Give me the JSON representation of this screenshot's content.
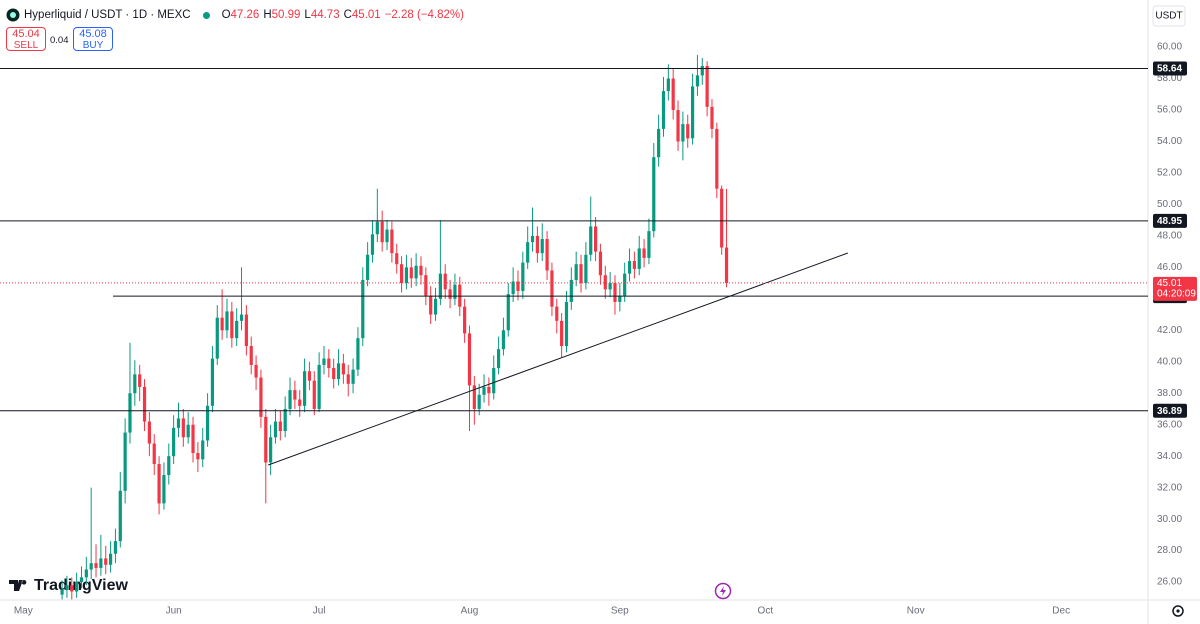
{
  "chart_data": {
    "type": "candlestick",
    "symbol": "Hyperliquid / USDT · 1D · MEXC",
    "ohlc_header": [
      {
        "key": "O",
        "value": "47.26"
      },
      {
        "key": "H",
        "value": "50.99"
      },
      {
        "key": "L",
        "value": "44.73"
      },
      {
        "key": "C",
        "value": "45.01"
      }
    ],
    "change": "−2.28 (−4.82%)",
    "sell": {
      "price": "45.04",
      "label": "SELL"
    },
    "buy": {
      "price": "45.08",
      "label": "BUY"
    },
    "spread": "0.04",
    "currency": "USDT",
    "brand": "TradingView",
    "up_color": "#089981",
    "down_color": "#f23645",
    "grid": false,
    "xlim": [
      -12.8,
      223.9
    ],
    "ylim": [
      24.86,
      62.99
    ],
    "xticks": [
      {
        "value": -8,
        "label": "May"
      },
      {
        "value": 23,
        "label": "Jun"
      },
      {
        "value": 53,
        "label": "Jul"
      },
      {
        "value": 84,
        "label": "Aug"
      },
      {
        "value": 115,
        "label": "Sep"
      },
      {
        "value": 145,
        "label": "Oct"
      },
      {
        "value": 176,
        "label": "Nov"
      },
      {
        "value": 206,
        "label": "Dec"
      }
    ],
    "yticks": [
      {
        "value": 26,
        "label": "26.00"
      },
      {
        "value": 28,
        "label": "28.00"
      },
      {
        "value": 30,
        "label": "30.00"
      },
      {
        "value": 32,
        "label": "32.00"
      },
      {
        "value": 34,
        "label": "34.00"
      },
      {
        "value": 36,
        "label": "36.00"
      },
      {
        "value": 38,
        "label": "38.00"
      },
      {
        "value": 40,
        "label": "40.00"
      },
      {
        "value": 42,
        "label": "42.00"
      },
      {
        "value": 44,
        "label": "44.00"
      },
      {
        "value": 46,
        "label": "46.00"
      },
      {
        "value": 48,
        "label": "48.00"
      },
      {
        "value": 50,
        "label": "50.00"
      },
      {
        "value": 52,
        "label": "52.00"
      },
      {
        "value": 54,
        "label": "54.00"
      },
      {
        "value": 56,
        "label": "56.00"
      },
      {
        "value": 58,
        "label": "58.00"
      },
      {
        "value": 60,
        "label": "60.00"
      }
    ],
    "levels": [
      58.64,
      48.95,
      44.17,
      36.89
    ],
    "trendline": {
      "x": [
        42.5,
        162
      ],
      "y": [
        33.44,
        46.91
      ]
    },
    "last_price": 45.01,
    "countdown": "04:20:09",
    "open": [
      25.2,
      25.5,
      25.8,
      25.4,
      26.0,
      26.3,
      26.8,
      27.2,
      26.9,
      27.5,
      27.1,
      27.8,
      28.6,
      31.8,
      35.5,
      38.0,
      39.2,
      38.4,
      36.2,
      34.8,
      33.5,
      31.0,
      32.8,
      34.0,
      35.8,
      36.4,
      35.2,
      36.0,
      34.2,
      33.8,
      35.0,
      37.2,
      40.2,
      42.8,
      42.0,
      43.2,
      41.5,
      42.6,
      43.0,
      41.0,
      39.8,
      39.0,
      36.5,
      33.6,
      35.2,
      36.2,
      35.6,
      37.0,
      38.2,
      37.6,
      37.2,
      39.4,
      38.8,
      37.0,
      39.8,
      40.2,
      39.6,
      38.9,
      39.9,
      39.2,
      38.6,
      39.5,
      41.5,
      45.2,
      46.8,
      48.1,
      48.9,
      47.6,
      48.4,
      46.9,
      46.2,
      45.0,
      46.0,
      45.3,
      46.1,
      45.5,
      44.2,
      43.0,
      44.0,
      45.6,
      44.6,
      44.0,
      44.9,
      43.5,
      41.8,
      38.5,
      37.0,
      37.9,
      38.4,
      38.0,
      39.6,
      40.8,
      42.0,
      44.3,
      45.1,
      44.5,
      46.3,
      47.6,
      48.0,
      46.9,
      47.8,
      45.8,
      43.5,
      42.6,
      41.0,
      43.8,
      45.2,
      46.2,
      45.0,
      46.8,
      48.6,
      47.0,
      45.5,
      44.6,
      45.0,
      43.8,
      44.2,
      45.6,
      46.4,
      45.9,
      47.2,
      46.6,
      48.3,
      53.0,
      54.8,
      57.2,
      58.0,
      56.0,
      54.0,
      55.1,
      54.2,
      57.5,
      58.2,
      58.8,
      56.2,
      54.8,
      51.0,
      47.26
    ],
    "high": [
      26.1,
      26.4,
      26.3,
      26.6,
      27.0,
      27.6,
      32.0,
      28.4,
      29.0,
      28.3,
      28.6,
      29.4,
      33.0,
      36.4,
      41.2,
      40.1,
      39.8,
      38.9,
      36.8,
      35.4,
      34.0,
      33.6,
      34.8,
      36.6,
      37.4,
      37.0,
      36.8,
      36.5,
      34.9,
      35.8,
      38.0,
      41.0,
      43.6,
      44.6,
      44.0,
      43.8,
      43.4,
      46.0,
      43.6,
      41.6,
      40.4,
      39.5,
      37.0,
      36.0,
      37.0,
      36.9,
      37.8,
      39.0,
      38.8,
      38.2,
      40.2,
      40.0,
      39.4,
      40.6,
      41.0,
      40.8,
      40.2,
      40.8,
      40.5,
      39.8,
      40.2,
      42.2,
      46.0,
      47.6,
      49.0,
      51.0,
      49.6,
      49.0,
      48.9,
      47.5,
      46.7,
      46.8,
      46.6,
      46.9,
      46.7,
      46.0,
      44.8,
      44.7,
      49.0,
      46.2,
      45.2,
      45.6,
      45.4,
      44.0,
      42.3,
      39.1,
      38.6,
      39.2,
      39.0,
      40.4,
      41.6,
      42.8,
      45.0,
      46.0,
      45.8,
      47.0,
      48.6,
      49.8,
      48.6,
      48.8,
      48.3,
      46.3,
      44.0,
      43.1,
      44.5,
      46.0,
      47.0,
      46.8,
      47.6,
      50.5,
      49.2,
      47.5,
      46.1,
      45.7,
      45.5,
      45.0,
      46.3,
      47.2,
      47.0,
      48.0,
      47.8,
      49.1,
      53.9,
      55.7,
      58.1,
      58.9,
      58.6,
      56.6,
      55.9,
      55.7,
      58.3,
      59.5,
      59.3,
      59.1,
      56.7,
      55.2,
      51.2,
      50.99
    ],
    "low": [
      24.9,
      25.0,
      24.9,
      25.0,
      25.6,
      25.8,
      26.2,
      26.3,
      26.4,
      26.5,
      26.6,
      27.2,
      28.2,
      31.0,
      34.8,
      37.2,
      37.5,
      35.6,
      34.0,
      32.8,
      30.3,
      30.6,
      32.2,
      33.5,
      35.2,
      34.6,
      34.8,
      33.6,
      33.0,
      33.3,
      34.6,
      36.8,
      39.8,
      41.4,
      41.5,
      40.9,
      41.0,
      42.0,
      40.4,
      39.2,
      38.2,
      35.8,
      31.0,
      32.8,
      34.8,
      35.0,
      35.2,
      36.6,
      37.0,
      36.5,
      36.8,
      38.2,
      36.6,
      36.8,
      39.2,
      39.0,
      38.3,
      38.5,
      38.6,
      37.8,
      38.0,
      39.1,
      41.0,
      44.8,
      46.3,
      47.6,
      47.0,
      47.1,
      46.3,
      45.6,
      44.4,
      44.6,
      44.7,
      44.8,
      44.9,
      43.6,
      42.4,
      42.6,
      43.6,
      44.0,
      43.4,
      43.6,
      42.9,
      41.2,
      35.6,
      36.0,
      36.6,
      37.4,
      37.2,
      37.6,
      39.2,
      40.4,
      41.6,
      43.8,
      43.9,
      44.0,
      45.9,
      47.0,
      46.3,
      46.4,
      45.2,
      42.9,
      41.8,
      40.3,
      40.6,
      43.3,
      44.8,
      44.4,
      44.6,
      46.4,
      46.4,
      44.9,
      44.0,
      44.1,
      43.0,
      43.2,
      43.8,
      45.1,
      45.3,
      45.5,
      46.0,
      46.2,
      47.9,
      52.4,
      54.3,
      56.6,
      55.4,
      53.4,
      52.8,
      53.6,
      53.8,
      56.9,
      57.6,
      55.6,
      54.2,
      50.4,
      46.8,
      44.73
    ],
    "close": [
      25.5,
      25.8,
      25.4,
      26.0,
      26.3,
      26.8,
      27.2,
      26.9,
      27.5,
      27.1,
      27.8,
      28.6,
      31.8,
      35.5,
      38.0,
      39.2,
      38.4,
      36.2,
      34.8,
      33.5,
      31.0,
      32.8,
      34.0,
      35.8,
      36.4,
      35.2,
      36.0,
      34.2,
      33.8,
      35.0,
      37.2,
      40.2,
      42.8,
      42.0,
      43.2,
      41.5,
      42.6,
      43.0,
      41.0,
      39.8,
      39.0,
      36.5,
      33.6,
      35.2,
      36.2,
      35.6,
      37.0,
      38.2,
      37.6,
      37.2,
      39.4,
      38.8,
      37.0,
      39.8,
      40.2,
      39.6,
      38.9,
      39.9,
      39.2,
      38.6,
      39.5,
      41.5,
      45.2,
      46.8,
      48.1,
      48.9,
      47.6,
      48.4,
      46.9,
      46.2,
      45.0,
      46.0,
      45.3,
      46.1,
      45.5,
      44.2,
      43.0,
      44.0,
      45.6,
      44.6,
      44.0,
      44.9,
      43.5,
      41.8,
      38.5,
      37.0,
      37.9,
      38.4,
      38.0,
      39.6,
      40.8,
      42.0,
      44.3,
      45.1,
      44.5,
      46.3,
      47.6,
      48.0,
      46.9,
      47.8,
      45.8,
      43.5,
      42.6,
      41.0,
      43.8,
      45.2,
      46.2,
      45.0,
      46.8,
      48.6,
      47.0,
      45.5,
      44.6,
      45.0,
      43.8,
      44.2,
      45.6,
      46.4,
      45.9,
      47.2,
      46.6,
      48.3,
      53.0,
      54.8,
      57.2,
      58.0,
      56.0,
      54.0,
      55.1,
      54.2,
      57.5,
      58.2,
      58.8,
      56.2,
      54.8,
      51.0,
      47.26,
      45.01
    ]
  }
}
